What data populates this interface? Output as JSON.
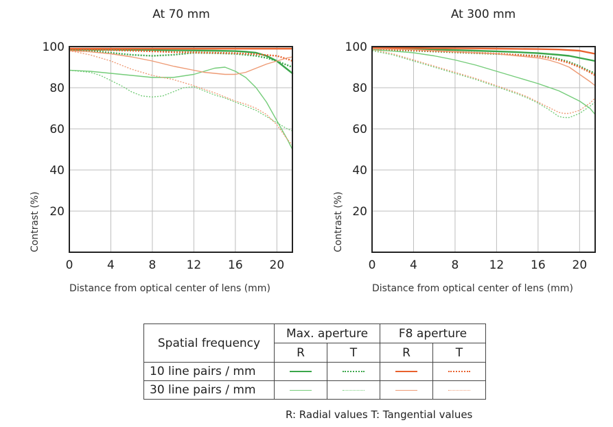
{
  "chart_data": [
    {
      "type": "line",
      "title": "At 70 mm",
      "xlabel": "Distance from optical center of lens (mm)",
      "ylabel": "Contrast (%)",
      "xlim": [
        0,
        21.5
      ],
      "ylim": [
        0,
        100
      ],
      "xticks": [
        "0",
        "4",
        "8",
        "12",
        "16",
        "20"
      ],
      "yticks": [
        "20",
        "40",
        "60",
        "80",
        "100"
      ],
      "grid": true,
      "series": [
        {
          "key": "mr10",
          "x": [
            0,
            2,
            4,
            6,
            8,
            10,
            12,
            14,
            16,
            17,
            18,
            19,
            20,
            21,
            21.5
          ],
          "y": [
            98.5,
            98.5,
            98.5,
            98.4,
            98.3,
            98.2,
            98.1,
            98.0,
            97.8,
            97.5,
            97,
            95.5,
            93,
            89,
            87
          ]
        },
        {
          "key": "mt10",
          "x": [
            0,
            2,
            4,
            6,
            8,
            10,
            12,
            14,
            16,
            18,
            19,
            20,
            21,
            21.5
          ],
          "y": [
            98.5,
            98,
            97,
            96,
            95.5,
            96,
            97,
            96.8,
            96.5,
            95.5,
            94.5,
            93,
            91,
            90
          ]
        },
        {
          "key": "fr10",
          "x": [
            0,
            2,
            4,
            6,
            8,
            10,
            12,
            14,
            16,
            18,
            20,
            21,
            21.5
          ],
          "y": [
            99,
            99,
            99,
            99,
            99,
            99,
            99,
            99,
            99,
            99,
            99,
            99,
            99
          ]
        },
        {
          "key": "ft10",
          "x": [
            0,
            2,
            4,
            6,
            8,
            10,
            12,
            14,
            16,
            18,
            20,
            21,
            21.5
          ],
          "y": [
            98.5,
            98.5,
            98.3,
            98,
            97.7,
            97.3,
            97.2,
            97,
            96.8,
            96.3,
            95.5,
            94,
            93
          ]
        },
        {
          "key": "mr30",
          "x": [
            0,
            2,
            4,
            6,
            8,
            10,
            12,
            13,
            14,
            15,
            16,
            17,
            18,
            19,
            20,
            21,
            21.5
          ],
          "y": [
            88.5,
            88,
            87,
            86,
            85,
            85,
            86.5,
            88,
            89.5,
            90,
            88,
            85,
            80,
            73,
            64,
            55,
            50
          ]
        },
        {
          "key": "mt30",
          "x": [
            0,
            2,
            3,
            4,
            5,
            6,
            7,
            8,
            9,
            10,
            11,
            12,
            13,
            14,
            15,
            16,
            17,
            18,
            19,
            20,
            21,
            21.5
          ],
          "y": [
            88.5,
            87.5,
            86,
            83.5,
            81,
            78,
            76,
            75.5,
            76,
            78,
            80,
            80.5,
            78.5,
            76.5,
            75,
            73,
            71,
            69,
            66,
            63,
            60,
            59
          ]
        },
        {
          "key": "fr30",
          "x": [
            0,
            2,
            4,
            6,
            8,
            10,
            12,
            13,
            14,
            15,
            16,
            17,
            18,
            19,
            20,
            21,
            21.5
          ],
          "y": [
            98,
            97.5,
            96.5,
            95,
            93,
            90.5,
            88.5,
            87.5,
            87,
            86.5,
            86.5,
            87.5,
            89.5,
            91.5,
            93,
            94.5,
            95
          ]
        },
        {
          "key": "ft30",
          "x": [
            0,
            2,
            4,
            6,
            8,
            10,
            12,
            14,
            16,
            17,
            18,
            19,
            20,
            21,
            21.5
          ],
          "y": [
            98,
            96,
            93,
            89,
            86,
            84,
            81,
            77.5,
            73.5,
            72,
            70,
            67,
            62,
            55,
            52
          ]
        }
      ]
    },
    {
      "type": "line",
      "title": "At 300 mm",
      "xlabel": "Distance from optical center of lens (mm)",
      "ylabel": "Contrast (%)",
      "xlim": [
        0,
        21.5
      ],
      "ylim": [
        0,
        100
      ],
      "xticks": [
        "0",
        "4",
        "8",
        "12",
        "16",
        "20"
      ],
      "yticks": [
        "20",
        "40",
        "60",
        "80",
        "100"
      ],
      "grid": true,
      "series": [
        {
          "key": "mr10",
          "x": [
            0,
            2,
            4,
            6,
            8,
            10,
            12,
            14,
            16,
            18,
            19,
            20,
            21,
            21.5
          ],
          "y": [
            99,
            99,
            98.8,
            98.6,
            98.3,
            98,
            97.7,
            97.3,
            96.8,
            96,
            95.5,
            94.5,
            93.5,
            93
          ]
        },
        {
          "key": "mt10",
          "x": [
            0,
            2,
            4,
            6,
            8,
            10,
            12,
            14,
            16,
            17,
            18,
            19,
            20,
            21,
            21.5
          ],
          "y": [
            98.5,
            98.3,
            98,
            97.6,
            97.2,
            96.8,
            96.4,
            96,
            95.5,
            95,
            94,
            92.5,
            90.5,
            88,
            87
          ]
        },
        {
          "key": "fr10",
          "x": [
            0,
            2,
            4,
            6,
            8,
            10,
            12,
            14,
            16,
            18,
            20,
            21,
            21.5
          ],
          "y": [
            99.3,
            99.3,
            99.3,
            99.2,
            99.2,
            99.1,
            99,
            98.9,
            98.8,
            98.6,
            98,
            97,
            96.5
          ]
        },
        {
          "key": "ft10",
          "x": [
            0,
            2,
            4,
            6,
            8,
            10,
            12,
            14,
            16,
            17,
            18,
            19,
            20,
            21,
            21.5
          ],
          "y": [
            98.8,
            98.5,
            98.2,
            97.8,
            97.4,
            97,
            96.6,
            96,
            95.3,
            94.5,
            93.5,
            92,
            90,
            87.5,
            86
          ]
        },
        {
          "key": "mr30",
          "x": [
            0,
            2,
            4,
            6,
            8,
            10,
            12,
            14,
            16,
            18,
            19,
            20,
            21,
            21.5
          ],
          "y": [
            98.5,
            97.8,
            97,
            95.5,
            93.5,
            91,
            88,
            85,
            82,
            78.5,
            76,
            73.5,
            70,
            67
          ]
        },
        {
          "key": "mt30",
          "x": [
            0,
            2,
            4,
            6,
            8,
            10,
            12,
            14,
            15,
            16,
            17,
            18,
            18.5,
            19,
            20,
            21,
            21.5
          ],
          "y": [
            98,
            96,
            93,
            90,
            87,
            84,
            80.5,
            77,
            75,
            72.5,
            69.5,
            66,
            65.5,
            65.5,
            67.5,
            71,
            73
          ]
        },
        {
          "key": "fr30",
          "x": [
            0,
            2,
            4,
            6,
            8,
            10,
            12,
            14,
            16,
            17,
            18,
            19,
            20,
            21,
            21.5
          ],
          "y": [
            99,
            98.8,
            98.5,
            98,
            97.5,
            97,
            96.5,
            95.5,
            94.5,
            93.5,
            92,
            90,
            86.5,
            83,
            81
          ]
        },
        {
          "key": "ft30",
          "x": [
            0,
            2,
            4,
            6,
            8,
            10,
            12,
            14,
            15,
            16,
            17,
            18,
            18.5,
            19,
            20,
            21,
            21.5
          ],
          "y": [
            98.5,
            96.5,
            93.5,
            90.5,
            87.5,
            84.5,
            81,
            77.5,
            75.5,
            73,
            70.5,
            68,
            67.5,
            67.5,
            69,
            72.5,
            75
          ]
        }
      ]
    }
  ],
  "styles": {
    "mr10": {
      "color": "#3aa64a",
      "width": 2.4,
      "dash": ""
    },
    "mt10": {
      "color": "#3aa64a",
      "width": 2.4,
      "dash": "2 2"
    },
    "fr10": {
      "color": "#e8602c",
      "width": 2.4,
      "dash": ""
    },
    "ft10": {
      "color": "#e8602c",
      "width": 2.4,
      "dash": "2 2"
    },
    "mr30": {
      "color": "#74cc79",
      "width": 1.4,
      "dash": ""
    },
    "mt30": {
      "color": "#74cc79",
      "width": 1.4,
      "dash": "2 2"
    },
    "fr30": {
      "color": "#ee9a74",
      "width": 1.4,
      "dash": ""
    },
    "ft30": {
      "color": "#ee9a74",
      "width": 1.4,
      "dash": "2 2"
    }
  },
  "legend": {
    "spatial_frequency": "Spatial frequency",
    "max_aperture": "Max. aperture",
    "f8_aperture": "F8 aperture",
    "r": "R",
    "t": "T",
    "row10": "10 line pairs / mm",
    "row30": "30 line pairs / mm",
    "footnote": "R: Radial values  T: Tangential values"
  }
}
